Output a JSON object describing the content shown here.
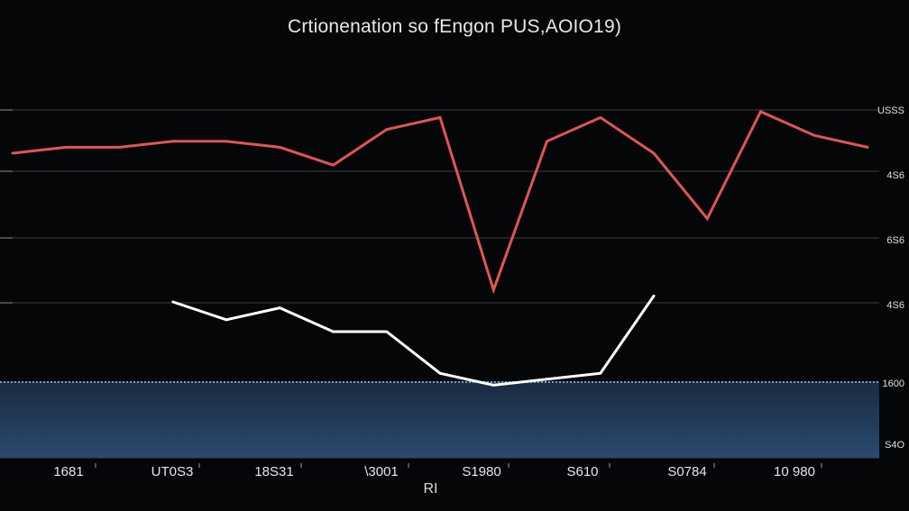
{
  "chart_data": {
    "type": "line",
    "title": "Crtionenation so fEngon PUS,AOIO19)",
    "xlabel": "RI",
    "ylabel": "",
    "x_ticks": [
      "1681",
      "UT0S3",
      "18S31",
      "\\3001",
      "S1980",
      "S610",
      "S0784",
      "10 980"
    ],
    "right_ticks": [
      "USSS",
      "4S6",
      "6S6",
      "4S6",
      "1600",
      "S4O"
    ],
    "grid": true,
    "series": [
      {
        "color": "#e05555",
        "x": [
          0,
          1,
          2,
          3,
          4,
          5,
          6,
          7,
          8,
          9,
          10,
          11,
          12,
          13,
          14,
          15,
          16
        ],
        "values": [
          120,
          121,
          121,
          122,
          122,
          121,
          118,
          124,
          126,
          97,
          122,
          126,
          120,
          109,
          127,
          123,
          121
        ]
      },
      {
        "color": "#ffffff",
        "x": [
          3,
          4,
          5,
          6,
          7,
          8,
          9,
          10,
          11,
          12
        ],
        "values": [
          95,
          92,
          94,
          90,
          90,
          83,
          81,
          82,
          83,
          96
        ]
      }
    ],
    "colors": {
      "background": "#050608",
      "grid": "#3a3d44",
      "band_top": "#1a2a40",
      "band_bottom": "#2a4a70"
    }
  }
}
